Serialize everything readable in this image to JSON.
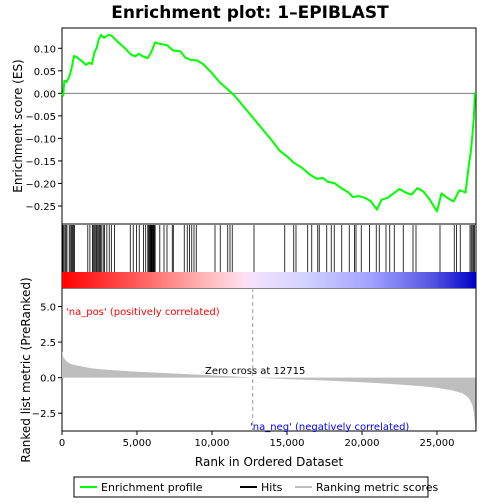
{
  "chart_data": {
    "type": "line",
    "title": "Enrichment plot: 1–EPIBLAST",
    "colors": {
      "enrichment": "#00ff00",
      "hits": "#000000",
      "metric_fill": "#bebebe",
      "zero_line": "#a0a0a0",
      "pos_label": "#ff0000",
      "neg_label": "#0000ff",
      "bar_red": "#ff0000",
      "bar_blue": "#0000ff"
    },
    "x_axis": {
      "label": "Rank in Ordered Dataset",
      "range": [
        0,
        27600
      ],
      "ticks": [
        0,
        5000,
        10000,
        15000,
        20000,
        25000
      ],
      "tick_labels": [
        "0",
        "5,000",
        "10,000",
        "15,000",
        "20,000",
        "25,000"
      ]
    },
    "top_panel": {
      "ylabel": "Enrichment score (ES)",
      "ylim": [
        -0.29,
        0.145
      ],
      "yticks": [
        -0.25,
        -0.2,
        -0.15,
        -0.1,
        -0.05,
        0.0,
        0.05,
        0.1
      ],
      "ytick_labels": [
        "−0.25",
        "−0.20",
        "−0.15",
        "−0.10",
        "−0.05",
        "0.00",
        "0.05",
        "0.10"
      ],
      "series": {
        "name": "Enrichment profile",
        "points": [
          [
            0,
            0
          ],
          [
            80,
            -0.005
          ],
          [
            150,
            0.028
          ],
          [
            300,
            0.025
          ],
          [
            500,
            0.038
          ],
          [
            650,
            0.058
          ],
          [
            800,
            0.083
          ],
          [
            1000,
            0.08
          ],
          [
            1300,
            0.072
          ],
          [
            1600,
            0.063
          ],
          [
            1800,
            0.068
          ],
          [
            2000,
            0.065
          ],
          [
            2150,
            0.09
          ],
          [
            2300,
            0.1
          ],
          [
            2450,
            0.12
          ],
          [
            2600,
            0.13
          ],
          [
            2800,
            0.123
          ],
          [
            3100,
            0.13
          ],
          [
            3300,
            0.128
          ],
          [
            3700,
            0.115
          ],
          [
            4200,
            0.1
          ],
          [
            4600,
            0.086
          ],
          [
            4900,
            0.082
          ],
          [
            5100,
            0.088
          ],
          [
            5400,
            0.082
          ],
          [
            5700,
            0.078
          ],
          [
            5900,
            0.088
          ],
          [
            6050,
            0.1
          ],
          [
            6200,
            0.113
          ],
          [
            6500,
            0.11
          ],
          [
            7000,
            0.107
          ],
          [
            7400,
            0.095
          ],
          [
            7900,
            0.093
          ],
          [
            8200,
            0.08
          ],
          [
            8600,
            0.074
          ],
          [
            9000,
            0.073
          ],
          [
            9400,
            0.065
          ],
          [
            10000,
            0.045
          ],
          [
            10500,
            0.025
          ],
          [
            11000,
            0.01
          ],
          [
            11500,
            -0.005
          ],
          [
            12000,
            -0.025
          ],
          [
            12500,
            -0.045
          ],
          [
            13000,
            -0.065
          ],
          [
            13500,
            -0.085
          ],
          [
            14000,
            -0.105
          ],
          [
            14500,
            -0.127
          ],
          [
            15000,
            -0.14
          ],
          [
            15500,
            -0.155
          ],
          [
            16000,
            -0.165
          ],
          [
            16500,
            -0.18
          ],
          [
            17000,
            -0.19
          ],
          [
            17400,
            -0.188
          ],
          [
            17700,
            -0.196
          ],
          [
            18200,
            -0.2
          ],
          [
            18700,
            -0.212
          ],
          [
            19100,
            -0.22
          ],
          [
            19400,
            -0.23
          ],
          [
            19800,
            -0.228
          ],
          [
            20200,
            -0.232
          ],
          [
            20600,
            -0.24
          ],
          [
            21000,
            -0.258
          ],
          [
            21300,
            -0.236
          ],
          [
            21700,
            -0.232
          ],
          [
            22100,
            -0.222
          ],
          [
            22500,
            -0.212
          ],
          [
            22900,
            -0.22
          ],
          [
            23300,
            -0.225
          ],
          [
            23700,
            -0.21
          ],
          [
            24100,
            -0.218
          ],
          [
            24500,
            -0.235
          ],
          [
            25000,
            -0.262
          ],
          [
            25300,
            -0.222
          ],
          [
            25700,
            -0.232
          ],
          [
            26100,
            -0.24
          ],
          [
            26500,
            -0.215
          ],
          [
            26900,
            -0.22
          ],
          [
            27100,
            -0.165
          ],
          [
            27250,
            -0.13
          ],
          [
            27350,
            -0.095
          ],
          [
            27450,
            -0.055
          ],
          [
            27530,
            0.002
          ]
        ]
      },
      "hits": [
        40,
        110,
        190,
        260,
        330,
        480,
        550,
        640,
        700,
        760,
        830,
        1720,
        1860,
        2030,
        2080,
        2150,
        2220,
        2300,
        2350,
        2420,
        2500,
        2560,
        2650,
        2750,
        2830,
        2990,
        3150,
        3290,
        3500,
        4550,
        4750,
        4960,
        5150,
        5430,
        5580,
        5720,
        5780,
        5830,
        5880,
        5930,
        5960,
        5990,
        6030,
        6070,
        6110,
        6160,
        6210,
        6520,
        6800,
        7000,
        7350,
        7420,
        8150,
        8350,
        8500,
        8650,
        8800,
        8950,
        10200,
        10550,
        11050,
        11200,
        11350,
        12800,
        14850,
        15450,
        15600,
        16380,
        16650,
        17050,
        17150,
        17650,
        17950,
        18150,
        18650,
        19150,
        19500,
        19600,
        19950,
        20500,
        20950,
        21150,
        21600,
        21850,
        22150,
        22750,
        23400,
        23600,
        25200,
        26150,
        26300,
        26550,
        27200,
        27280,
        27350,
        27430,
        27500
      ]
    },
    "bottom_panel": {
      "ylabel": "Ranked list metric (PreRanked)",
      "ylim": [
        -3.75,
        6.3
      ],
      "yticks": [
        -2.5,
        0.0,
        2.5,
        5.0
      ],
      "ytick_labels": [
        "−2.5",
        "0.0",
        "2.5",
        "5.0"
      ],
      "metric_points": [
        [
          0,
          1.9
        ],
        [
          100,
          1.4
        ],
        [
          300,
          1.15
        ],
        [
          600,
          0.95
        ],
        [
          1000,
          0.85
        ],
        [
          2000,
          0.65
        ],
        [
          3000,
          0.55
        ],
        [
          5000,
          0.42
        ],
        [
          8000,
          0.26
        ],
        [
          10000,
          0.16
        ],
        [
          12000,
          0.05
        ],
        [
          12715,
          0.0
        ],
        [
          15000,
          -0.1
        ],
        [
          18000,
          -0.22
        ],
        [
          20000,
          -0.33
        ],
        [
          22000,
          -0.45
        ],
        [
          24000,
          -0.6
        ],
        [
          25000,
          -0.72
        ],
        [
          26000,
          -0.9
        ],
        [
          26700,
          -1.1
        ],
        [
          27100,
          -1.4
        ],
        [
          27350,
          -1.9
        ],
        [
          27480,
          -2.6
        ],
        [
          27560,
          -3.6
        ]
      ],
      "zero_cross_rank": 12715,
      "zero_cross_label": "Zero cross at 12715",
      "pos_label": "'na_pos' (positively correlated)",
      "neg_label": "'na_neg' (negatively correlated)"
    },
    "legend": {
      "placement": "bottom",
      "items": [
        {
          "label": "Enrichment profile",
          "kind": "line-green"
        },
        {
          "label": "Hits",
          "kind": "line-black"
        },
        {
          "label": "Ranking metric scores",
          "kind": "line-gray"
        }
      ]
    }
  }
}
